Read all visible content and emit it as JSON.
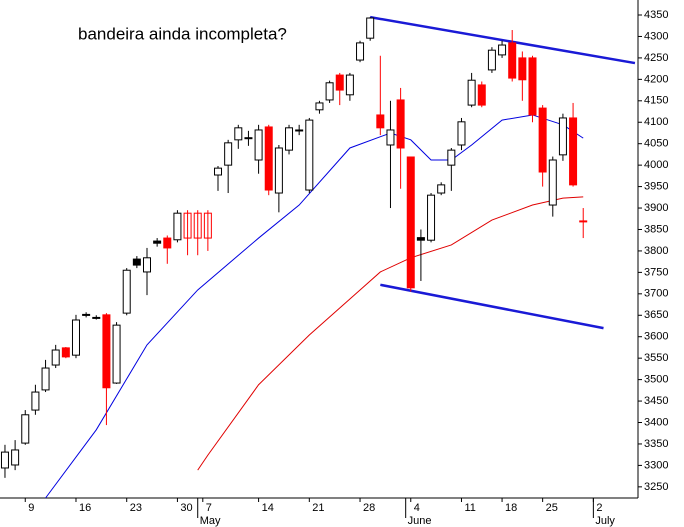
{
  "chart_data": {
    "type": "candlestick",
    "title": "bandeira ainda incompleta?",
    "title_color": "#1414d2",
    "x": [
      0,
      1,
      2,
      3,
      4,
      5,
      6,
      7,
      8,
      9,
      10,
      11,
      12,
      13,
      14,
      15,
      16,
      17,
      18,
      19,
      20,
      21,
      22,
      23,
      24,
      25,
      26,
      27,
      28,
      29,
      30,
      31,
      32,
      33,
      34,
      35,
      36,
      37,
      38,
      39,
      40,
      41,
      42,
      43,
      44,
      45,
      46,
      47,
      48,
      49,
      50,
      51,
      52,
      53,
      54,
      55,
      56,
      57
    ],
    "open": [
      3294,
      3301,
      3352,
      3429,
      3476,
      3534,
      3574,
      3557,
      3650,
      3645,
      3651,
      3492,
      3655,
      3781,
      3751,
      3823,
      3830,
      3826,
      3888,
      3888,
      3888,
      3977,
      4000,
      4059,
      4064,
      4012,
      4089,
      3935,
      4035,
      4082,
      3942,
      4129,
      4152,
      4210,
      4164,
      4245,
      4296,
      4117,
      4047,
      4152,
      4019,
      3831,
      3825,
      3935,
      4000,
      4047,
      4140,
      4187,
      4222,
      4257,
      4285,
      4250,
      4250,
      4133,
      3907,
      4024,
      4110,
      3870
    ],
    "high": [
      3348,
      3359,
      3429,
      3488,
      3546,
      3581,
      3576,
      3651,
      3657,
      3650,
      3655,
      3634,
      3760,
      3788,
      3807,
      3830,
      3836,
      3895,
      3895,
      3895,
      3895,
      3998,
      4059,
      4094,
      4080,
      4094,
      4094,
      4047,
      4094,
      4094,
      4110,
      4150,
      4197,
      4215,
      4215,
      4290,
      4345,
      4255,
      4150,
      4180,
      4020,
      3850,
      3935,
      3960,
      4040,
      4110,
      4215,
      4195,
      4275,
      4290,
      4315,
      4265,
      4255,
      4140,
      4020,
      4120,
      4145,
      3900
    ],
    "low": [
      3271,
      3289,
      3348,
      3418,
      3471,
      3527,
      3550,
      3550,
      3645,
      3640,
      3394,
      3490,
      3650,
      3760,
      3697,
      3810,
      3770,
      3820,
      3790,
      3790,
      3800,
      3940,
      3935,
      4038,
      4045,
      3980,
      3930,
      3890,
      4025,
      4070,
      3935,
      4120,
      4145,
      4140,
      4150,
      4240,
      4290,
      4070,
      3900,
      3945,
      3705,
      3730,
      3820,
      3930,
      3940,
      4035,
      4135,
      4135,
      4215,
      4250,
      4195,
      4150,
      4100,
      3950,
      3880,
      4010,
      3950,
      3830
    ],
    "close": [
      3331,
      3336,
      3418,
      3471,
      3527,
      3569,
      3553,
      3639,
      3652,
      3644,
      3481,
      3627,
      3755,
      3767,
      3784,
      3818,
      3807,
      3888,
      3830,
      3830,
      3830,
      3993,
      4052,
      4087,
      4063,
      4082,
      3942,
      4040,
      4087,
      4080,
      4105,
      4145,
      4192,
      4175,
      4210,
      4285,
      4343,
      4087,
      4082,
      4040,
      3714,
      3825,
      3930,
      3954,
      4035,
      4101,
      4198,
      4140,
      4268,
      4280,
      4203,
      4199,
      4117,
      3984,
      4012,
      4110,
      3954,
      3868
    ],
    "colors": [
      "#fff",
      "#fff",
      "#fff",
      "#fff",
      "#fff",
      "#fff",
      "#f00",
      "#fff",
      "#fff",
      "#fff",
      "#f00",
      "#fff",
      "#fff",
      "#000",
      "#fff",
      "#000",
      "#f00",
      "#fff",
      "none",
      "none",
      "none",
      "#fff",
      "#fff",
      "#fff",
      "#fff",
      "#fff",
      "#f00",
      "#fff",
      "#fff",
      "#fff",
      "#fff",
      "#fff",
      "#fff",
      "#f00",
      "#fff",
      "#fff",
      "#fff",
      "#f00",
      "#fff",
      "#f00",
      "#f00",
      "#000",
      "#fff",
      "#fff",
      "#fff",
      "#fff",
      "#fff",
      "#f00",
      "#fff",
      "#fff",
      "#f00",
      "#f00",
      "#f00",
      "#f00",
      "#fff",
      "#fff",
      "#f00",
      "#f00"
    ],
    "lines": [
      {
        "color": "#0000e0",
        "x": [
          4,
          9,
          14,
          19,
          25,
          29,
          34,
          38,
          40,
          42,
          44,
          46,
          49,
          52,
          55,
          57
        ],
        "values": [
          3224,
          3383,
          3581,
          3709,
          3830,
          3907,
          4040,
          4075,
          4059,
          4012,
          4012,
          4047,
          4105,
          4117,
          4094,
          4063
        ]
      },
      {
        "color": "#e00000",
        "x": [
          19,
          20,
          25,
          30,
          35,
          37,
          40,
          44,
          48,
          52,
          55,
          57
        ],
        "values": [
          3289,
          3324,
          3488,
          3604,
          3709,
          3751,
          3784,
          3814,
          3872,
          3907,
          3923,
          3926
        ]
      }
    ],
    "trendlines": [
      {
        "color": "#1a1ad6",
        "x": [
          36,
          62.1
        ],
        "values": [
          4345,
          4238
        ]
      },
      {
        "color": "#1a1ad6",
        "x": [
          37,
          59
        ],
        "values": [
          3721,
          3620
        ]
      }
    ],
    "xlim": [
      -0.49,
      62.4
    ],
    "ylim": [
      3224,
      4385
    ],
    "yticks": [
      3250,
      3300,
      3350,
      3400,
      3450,
      3500,
      3550,
      3600,
      3650,
      3700,
      3750,
      3800,
      3850,
      3900,
      3950,
      4000,
      4050,
      4100,
      4150,
      4200,
      4250,
      4300,
      4350
    ],
    "xticks": [
      {
        "value": 2,
        "label": "9"
      },
      {
        "value": 7,
        "label": "16"
      },
      {
        "value": 12,
        "label": "23"
      },
      {
        "value": 17,
        "label": "30"
      },
      {
        "value": 19.5,
        "label": "7"
      },
      {
        "value": 25,
        "label": "14"
      },
      {
        "value": 30,
        "label": "21"
      },
      {
        "value": 35,
        "label": "28"
      },
      {
        "value": 40,
        "label": "4"
      },
      {
        "value": 45,
        "label": "11"
      },
      {
        "value": 49,
        "label": "18"
      },
      {
        "value": 53,
        "label": "25"
      },
      {
        "value": 58,
        "label": "2"
      }
    ],
    "months": [
      {
        "value": 19,
        "label": "May"
      },
      {
        "value": 39.5,
        "label": "June"
      },
      {
        "value": 58,
        "label": "July"
      }
    ]
  }
}
